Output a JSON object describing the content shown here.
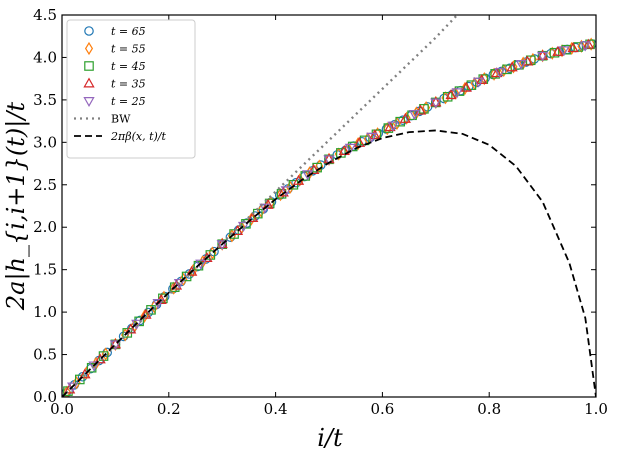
{
  "chart_data": {
    "type": "scatter",
    "title": "",
    "xlabel": "i/t",
    "ylabel": "2a|h_{i,i+1}(t)|/t",
    "xlim": [
      0.0,
      1.0
    ],
    "ylim": [
      0.0,
      4.5
    ],
    "xticks": [
      0.0,
      0.2,
      0.4,
      0.6,
      0.8,
      1.0
    ],
    "xtick_labels": [
      "0.0",
      "0.2",
      "0.4",
      "0.6",
      "0.8",
      "1.0"
    ],
    "yticks": [
      0.0,
      0.5,
      1.0,
      1.5,
      2.0,
      2.5,
      3.0,
      3.5,
      4.0,
      4.5
    ],
    "ytick_labels": [
      "0.0",
      "0.5",
      "1.0",
      "1.5",
      "2.0",
      "2.5",
      "3.0",
      "3.5",
      "4.0",
      "4.5"
    ],
    "grid": false,
    "legend_position": "top-left",
    "series": [
      {
        "name": "t = 65",
        "marker": "circle",
        "color": "#1f77b4",
        "t": 65
      },
      {
        "name": "t = 55",
        "marker": "diamond",
        "color": "#ff7f0e",
        "t": 55
      },
      {
        "name": "t = 45",
        "marker": "square",
        "color": "#2ca02c",
        "t": 45
      },
      {
        "name": "t = 35",
        "marker": "triangle-up",
        "color": "#d62728",
        "t": 35
      },
      {
        "name": "t = 25",
        "marker": "triangle-down",
        "color": "#9467bd",
        "t": 25
      }
    ],
    "lines": [
      {
        "name": "BW",
        "style": "dotted",
        "color": "#808080",
        "x": [
          0.0,
          0.1,
          0.2,
          0.3,
          0.4,
          0.5,
          0.6,
          0.7,
          0.74
        ],
        "y": [
          0.0,
          0.605,
          1.21,
          1.815,
          2.42,
          3.025,
          3.63,
          4.235,
          4.5
        ]
      },
      {
        "name": "2πβ(x,t)/t",
        "style": "dashed",
        "color": "#000000",
        "x": [
          0.0,
          0.05,
          0.1,
          0.15,
          0.2,
          0.25,
          0.3,
          0.35,
          0.4,
          0.45,
          0.5,
          0.55,
          0.6,
          0.65,
          0.7,
          0.75,
          0.8,
          0.85,
          0.9,
          0.95,
          0.98,
          1.0
        ],
        "y": [
          0.0,
          0.31,
          0.62,
          0.93,
          1.23,
          1.52,
          1.8,
          2.07,
          2.33,
          2.56,
          2.76,
          2.93,
          3.05,
          3.12,
          3.14,
          3.1,
          2.97,
          2.72,
          2.3,
          1.58,
          0.93,
          0.0
        ]
      }
    ],
    "collapse_curve": {
      "x": [
        0.0,
        0.1,
        0.2,
        0.3,
        0.35,
        0.4,
        0.45,
        0.5,
        0.55,
        0.6,
        0.65,
        0.7,
        0.75,
        0.8,
        0.85,
        0.9,
        0.95,
        1.0
      ],
      "y": [
        0.0,
        0.62,
        1.23,
        1.8,
        2.07,
        2.34,
        2.58,
        2.8,
        2.97,
        3.13,
        3.3,
        3.47,
        3.62,
        3.78,
        3.9,
        4.02,
        4.1,
        4.17
      ]
    },
    "legend": {
      "entries": [
        {
          "label": "t = 65"
        },
        {
          "label": "t = 55"
        },
        {
          "label": "t = 45"
        },
        {
          "label": "t = 35"
        },
        {
          "label": "t = 25"
        },
        {
          "label": "BW"
        },
        {
          "label": "2πβ(x, t)/t"
        }
      ]
    }
  }
}
